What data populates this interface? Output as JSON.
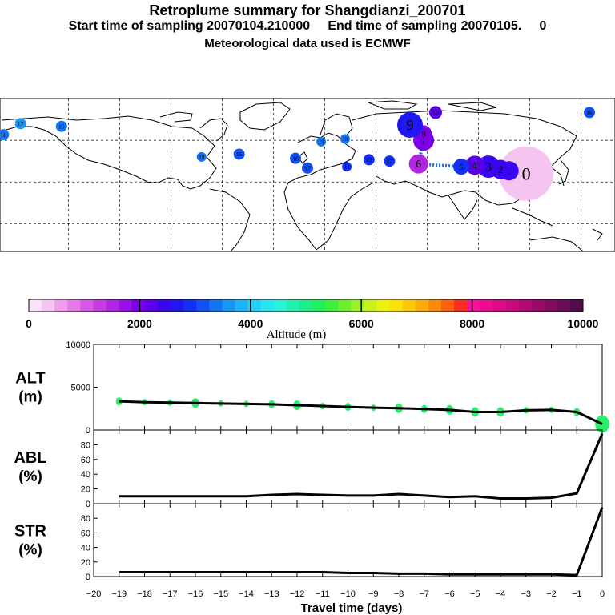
{
  "header": {
    "title": "Retroplume summary for Shangdianzi_200701",
    "sampling_line": "Start time of sampling 20070104.210000     End time of sampling 20070105.     0",
    "meteo_line": "Meteorological data used is ECMWF"
  },
  "map": {
    "description_label": "Retroplume map",
    "land_color": "#ffffff",
    "coast_color": "#000000",
    "grid_color": "#000000",
    "track_color": "#1f6fe0",
    "plume_points": [
      {
        "label": "0",
        "lon": 118,
        "lat": 36,
        "alt": 300,
        "size": 34
      },
      {
        "label": "1",
        "lon": 108,
        "lat": 38,
        "alt": 2400,
        "size": 12
      },
      {
        "label": "2",
        "lon": 103,
        "lat": 39,
        "alt": 2400,
        "size": 12
      },
      {
        "label": "3",
        "lon": 96,
        "lat": 41,
        "alt": 2500,
        "size": 14
      },
      {
        "label": "4",
        "lon": 88,
        "lat": 42,
        "alt": 2100,
        "size": 12
      },
      {
        "label": "5",
        "lon": 80,
        "lat": 41,
        "alt": 2800,
        "size": 10
      },
      {
        "label": "6",
        "lon": 55,
        "lat": 43,
        "alt": 1400,
        "size": 12
      },
      {
        "label": "7",
        "lon": 58,
        "lat": 60,
        "alt": 1900,
        "size": 13
      },
      {
        "label": "8",
        "lon": 58,
        "lat": 65,
        "alt": 1900,
        "size": 10
      },
      {
        "label": "9",
        "lon": 50,
        "lat": 71,
        "alt": 2600,
        "size": 16
      },
      {
        "label": "13",
        "lon": 65,
        "lat": 80,
        "alt": 2300,
        "size": 8
      },
      {
        "label": "16",
        "lon": 155,
        "lat": 80,
        "alt": 3200,
        "size": 7
      },
      {
        "label": "17",
        "lon": -178,
        "lat": 72,
        "alt": 3500,
        "size": 7
      },
      {
        "label": "15",
        "lon": -154,
        "lat": 70,
        "alt": 3300,
        "size": 7
      },
      {
        "label": "15",
        "lon": -50,
        "lat": 50,
        "alt": 3200,
        "size": 7
      },
      {
        "label": "16",
        "lon": -17,
        "lat": 47,
        "alt": 3100,
        "size": 7
      },
      {
        "label": "17",
        "lon": -10,
        "lat": 40,
        "alt": 3200,
        "size": 7
      },
      {
        "label": "14",
        "lon": 13,
        "lat": 41,
        "alt": 3000,
        "size": 6
      },
      {
        "label": "13",
        "lon": 26,
        "lat": 46,
        "alt": 2800,
        "size": 7
      },
      {
        "label": "12",
        "lon": 38,
        "lat": 45,
        "alt": 3000,
        "size": 7
      },
      {
        "label": "18",
        "lon": 12,
        "lat": 61,
        "alt": 3300,
        "size": 6
      },
      {
        "label": "19",
        "lon": -2,
        "lat": 59,
        "alt": 3400,
        "size": 6
      },
      {
        "label": "19",
        "lon": -72,
        "lat": 48,
        "alt": 3300,
        "size": 6
      },
      {
        "label": "10",
        "lon": -188,
        "lat": 64,
        "alt": 3300,
        "size": 7
      }
    ]
  },
  "colorbar": {
    "label": "Altitude (m)",
    "ticks": [
      "0",
      "2000",
      "4000",
      "6000",
      "8000",
      "10000"
    ],
    "colors": [
      "#fbe3f7",
      "#f5c4f1",
      "#ef9ded",
      "#e57ae8",
      "#d658e5",
      "#c93ae3",
      "#b224e4",
      "#9711e4",
      "#7a00e6",
      "#5a00ea",
      "#3a05ef",
      "#2018f2",
      "#1230f2",
      "#1150f2",
      "#1474f2",
      "#1896f4",
      "#1cb4f6",
      "#22d0f6",
      "#27e6f2",
      "#2cf0d8",
      "#22f0b0",
      "#1cef8a",
      "#20f060",
      "#3cf03c",
      "#6cf02c",
      "#9cf028",
      "#c8f01c",
      "#eef010",
      "#fae208",
      "#fcc808",
      "#fcac08",
      "#fc8a0c",
      "#fc6010",
      "#fc2c20",
      "#f8109c",
      "#ec0c8c",
      "#dc0a86",
      "#c80a7c",
      "#b20a72",
      "#9a0a6a",
      "#820c60",
      "#6a0c56",
      "#520c4c"
    ]
  },
  "chart_data": [
    {
      "type": "line",
      "panel_label": "ALT",
      "panel_unit": "(m)",
      "x": [
        -19,
        -18,
        -17,
        -16,
        -15,
        -14,
        -13,
        -12,
        -11,
        -10,
        -9,
        -8,
        -7,
        -6,
        -5,
        -4,
        -3,
        -2,
        -1,
        0
      ],
      "values": [
        3350,
        3250,
        3200,
        3150,
        3100,
        3050,
        3000,
        2900,
        2800,
        2700,
        2600,
        2550,
        2450,
        2350,
        2100,
        2100,
        2300,
        2350,
        2100,
        700
      ],
      "ylim": [
        0,
        10000
      ],
      "yticks": [
        "0",
        "5000",
        "10000"
      ],
      "xlim": [
        -20,
        0
      ],
      "series_color": "#000000",
      "scatter_color": "#27f066"
    },
    {
      "type": "line",
      "panel_label": "ABL",
      "panel_unit": "(%)",
      "x": [
        -19,
        -18,
        -17,
        -16,
        -15,
        -14,
        -13,
        -12,
        -11,
        -10,
        -9,
        -8,
        -7,
        -6,
        -5,
        -4,
        -3,
        -2,
        -1,
        0
      ],
      "values": [
        10,
        10,
        10,
        10,
        10,
        10,
        12,
        13,
        12,
        11,
        11,
        13,
        11,
        9,
        10,
        7,
        7,
        8,
        14,
        95
      ],
      "ylim": [
        0,
        100
      ],
      "yticks": [
        "0",
        "20",
        "40",
        "60",
        "80"
      ],
      "xlim": [
        -20,
        0
      ],
      "series_color": "#000000"
    },
    {
      "type": "line",
      "panel_label": "STR",
      "panel_unit": "(%)",
      "x": [
        -19,
        -18,
        -17,
        -16,
        -15,
        -14,
        -13,
        -12,
        -11,
        -10,
        -9,
        -8,
        -7,
        -6,
        -5,
        -4,
        -3,
        -2,
        -1,
        0
      ],
      "values": [
        6,
        6,
        6,
        6,
        6,
        6,
        6,
        6,
        6,
        5,
        5,
        4,
        4,
        3,
        3,
        3,
        3,
        3,
        2,
        95
      ],
      "ylim": [
        0,
        100
      ],
      "yticks": [
        "0",
        "20",
        "40",
        "60",
        "80"
      ],
      "xlim": [
        -20,
        0
      ],
      "series_color": "#000000"
    }
  ],
  "xaxis": {
    "label": "Travel time (days)",
    "ticks": [
      "−20",
      "−19",
      "−18",
      "−17",
      "−16",
      "−15",
      "−14",
      "−13",
      "−12",
      "−11",
      "−10",
      "−9",
      "−8",
      "−7",
      "−6",
      "−5",
      "−4",
      "−3",
      "−2",
      "−1",
      "0"
    ]
  }
}
